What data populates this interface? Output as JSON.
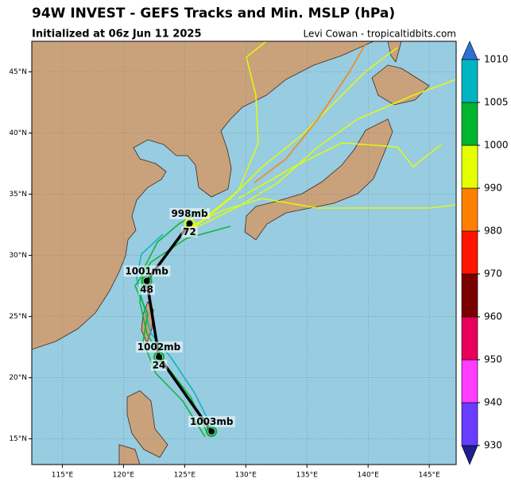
{
  "chart_data": {
    "type": "map-track",
    "title": "94W INVEST - GEFS Tracks and Min. MSLP (hPa)",
    "subtitle": "Initialized at 06z Jun 11 2025",
    "credit": "Levi Cowan - tropicaltidbits.com",
    "xlim": [
      112.5,
      147.2
    ],
    "ylim": [
      12.9,
      47.5
    ],
    "xticks": [
      {
        "value": 115,
        "label": "115°E"
      },
      {
        "value": 120,
        "label": "120°E"
      },
      {
        "value": 125,
        "label": "125°E"
      },
      {
        "value": 130,
        "label": "130°E"
      },
      {
        "value": 135,
        "label": "135°E"
      },
      {
        "value": 140,
        "label": "140°E"
      },
      {
        "value": 145,
        "label": "145°E"
      }
    ],
    "yticks": [
      {
        "value": 15,
        "label": "15°N"
      },
      {
        "value": 20,
        "label": "20°N"
      },
      {
        "value": 25,
        "label": "25°N"
      },
      {
        "value": 30,
        "label": "30°N"
      },
      {
        "value": 35,
        "label": "35°N"
      },
      {
        "value": 40,
        "label": "40°N"
      },
      {
        "value": 45,
        "label": "45°N"
      }
    ],
    "grid": true,
    "track": {
      "lon": [
        127.2,
        122.9,
        121.9,
        125.4
      ],
      "lat": [
        15.6,
        21.7,
        27.9,
        32.6
      ],
      "pressure": [
        1003,
        1002,
        1001,
        998
      ],
      "value_labels": [
        "1003mb",
        "1002mb",
        "1001mb",
        "998mb"
      ],
      "hours": [
        null,
        24,
        48,
        72
      ],
      "color": "#000000"
    },
    "colorbar": {
      "ticks": [
        930,
        940,
        950,
        960,
        970,
        980,
        990,
        1000,
        1005,
        1010
      ],
      "colors": [
        "#6a3cff",
        "#ff3cff",
        "#e8005a",
        "#7a0000",
        "#ff1400",
        "#ff8000",
        "#e6ff00",
        "#00b42d",
        "#00b4c3"
      ],
      "under_color": "#1e1e8c",
      "over_color": "#2f6fd6"
    }
  }
}
